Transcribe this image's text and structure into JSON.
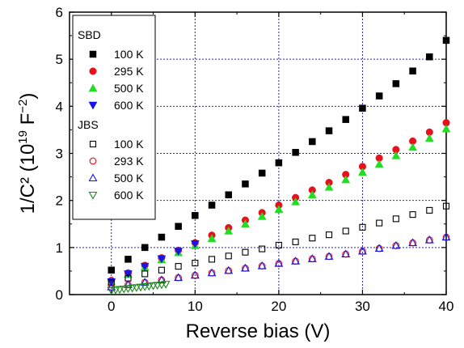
{
  "chart_data": {
    "type": "scatter",
    "title": "",
    "xlabel": "Reverse bias (V)",
    "ylabel": {
      "prefix": "1/C² (10",
      "exp": "19",
      "unit": " F",
      "unit_exp": "−2",
      "suffix": ")"
    },
    "xlim": [
      -5,
      40
    ],
    "ylim": [
      0,
      6
    ],
    "x_ticks": [
      0,
      10,
      20,
      30,
      40
    ],
    "y_ticks": [
      0,
      1,
      2,
      3,
      4,
      5,
      6
    ],
    "grid": true,
    "legend_placement": "top-left",
    "legend_groups": [
      "SBD",
      "JBS"
    ],
    "series": [
      {
        "name": "100 K",
        "group": "SBD",
        "marker": "square",
        "filled": true,
        "color": "#000000",
        "x": [
          0,
          2,
          4,
          6,
          8,
          10,
          12,
          14,
          16,
          18,
          20,
          22,
          24,
          26,
          28,
          30,
          32,
          34,
          36,
          38,
          40
        ],
        "y": [
          0.52,
          0.75,
          1.0,
          1.22,
          1.45,
          1.68,
          1.9,
          2.12,
          2.35,
          2.58,
          2.8,
          3.02,
          3.25,
          3.48,
          3.72,
          3.96,
          4.22,
          4.48,
          4.75,
          5.05,
          5.4
        ]
      },
      {
        "name": "295 K",
        "group": "SBD",
        "marker": "circle",
        "filled": true,
        "color": "#e8101a",
        "x": [
          0,
          2,
          4,
          6,
          8,
          10,
          12,
          14,
          16,
          18,
          20,
          22,
          24,
          26,
          28,
          30,
          32,
          34,
          36,
          38,
          40
        ],
        "y": [
          0.3,
          0.46,
          0.62,
          0.78,
          0.94,
          1.1,
          1.26,
          1.42,
          1.58,
          1.74,
          1.9,
          2.06,
          2.22,
          2.38,
          2.55,
          2.72,
          2.9,
          3.08,
          3.26,
          3.45,
          3.65
        ]
      },
      {
        "name": "500 K",
        "group": "SBD",
        "marker": "triangle-up",
        "filled": true,
        "color": "#22dd22",
        "x": [
          0,
          2,
          4,
          6,
          8,
          10,
          12,
          14,
          16,
          18,
          20,
          22,
          24,
          26,
          28,
          30,
          32,
          34,
          36,
          38,
          40
        ],
        "y": [
          0.27,
          0.43,
          0.58,
          0.74,
          0.89,
          1.04,
          1.19,
          1.35,
          1.5,
          1.66,
          1.81,
          1.97,
          2.12,
          2.28,
          2.44,
          2.6,
          2.77,
          2.95,
          3.13,
          3.32,
          3.52
        ]
      },
      {
        "name": "600 K",
        "group": "SBD",
        "marker": "triangle-down",
        "filled": true,
        "color": "#1515e8",
        "x": [
          0,
          2,
          4,
          6,
          8,
          10
        ],
        "y": [
          0.27,
          0.44,
          0.6,
          0.76,
          0.92,
          1.08
        ]
      },
      {
        "name": "100 K",
        "group": "JBS",
        "marker": "square",
        "filled": false,
        "color": "#000000",
        "x": [
          0,
          2,
          4,
          6,
          8,
          10,
          12,
          14,
          16,
          18,
          20,
          22,
          24,
          26,
          28,
          30,
          32,
          34,
          36,
          38,
          40
        ],
        "y": [
          0.25,
          0.35,
          0.44,
          0.52,
          0.6,
          0.67,
          0.75,
          0.82,
          0.9,
          0.97,
          1.05,
          1.12,
          1.2,
          1.27,
          1.35,
          1.43,
          1.52,
          1.61,
          1.7,
          1.79,
          1.88
        ]
      },
      {
        "name": "293 K",
        "group": "JBS",
        "marker": "circle",
        "filled": false,
        "color": "#e8101a",
        "x": [
          0,
          2,
          4,
          6,
          8,
          10,
          12,
          14,
          16,
          18,
          20,
          22,
          24,
          26,
          28,
          30,
          32,
          34,
          36,
          38,
          40
        ],
        "y": [
          0.16,
          0.21,
          0.26,
          0.31,
          0.36,
          0.41,
          0.46,
          0.51,
          0.56,
          0.61,
          0.66,
          0.71,
          0.76,
          0.81,
          0.86,
          0.92,
          0.98,
          1.04,
          1.1,
          1.16,
          1.22
        ]
      },
      {
        "name": "500 K",
        "group": "JBS",
        "marker": "triangle-up",
        "filled": false,
        "color": "#1515e8",
        "x": [
          0,
          2,
          4,
          6,
          8,
          10,
          12,
          14,
          16,
          18,
          20,
          22,
          24,
          26,
          28,
          30,
          32,
          34,
          36,
          38,
          40
        ],
        "y": [
          0.16,
          0.21,
          0.26,
          0.31,
          0.36,
          0.41,
          0.46,
          0.51,
          0.56,
          0.61,
          0.66,
          0.71,
          0.76,
          0.81,
          0.86,
          0.92,
          0.98,
          1.04,
          1.1,
          1.16,
          1.22
        ]
      },
      {
        "name": "600 K",
        "group": "JBS",
        "marker": "triangle-down",
        "filled": false,
        "color": "#1a8a1a",
        "x": [
          0,
          0.5,
          1,
          1.5,
          2,
          2.5,
          3,
          3.5,
          4,
          4.5,
          5,
          5.5,
          6,
          6.5
        ],
        "y": [
          0.09,
          0.1,
          0.11,
          0.12,
          0.13,
          0.14,
          0.15,
          0.16,
          0.17,
          0.18,
          0.19,
          0.2,
          0.21,
          0.22
        ]
      }
    ]
  }
}
